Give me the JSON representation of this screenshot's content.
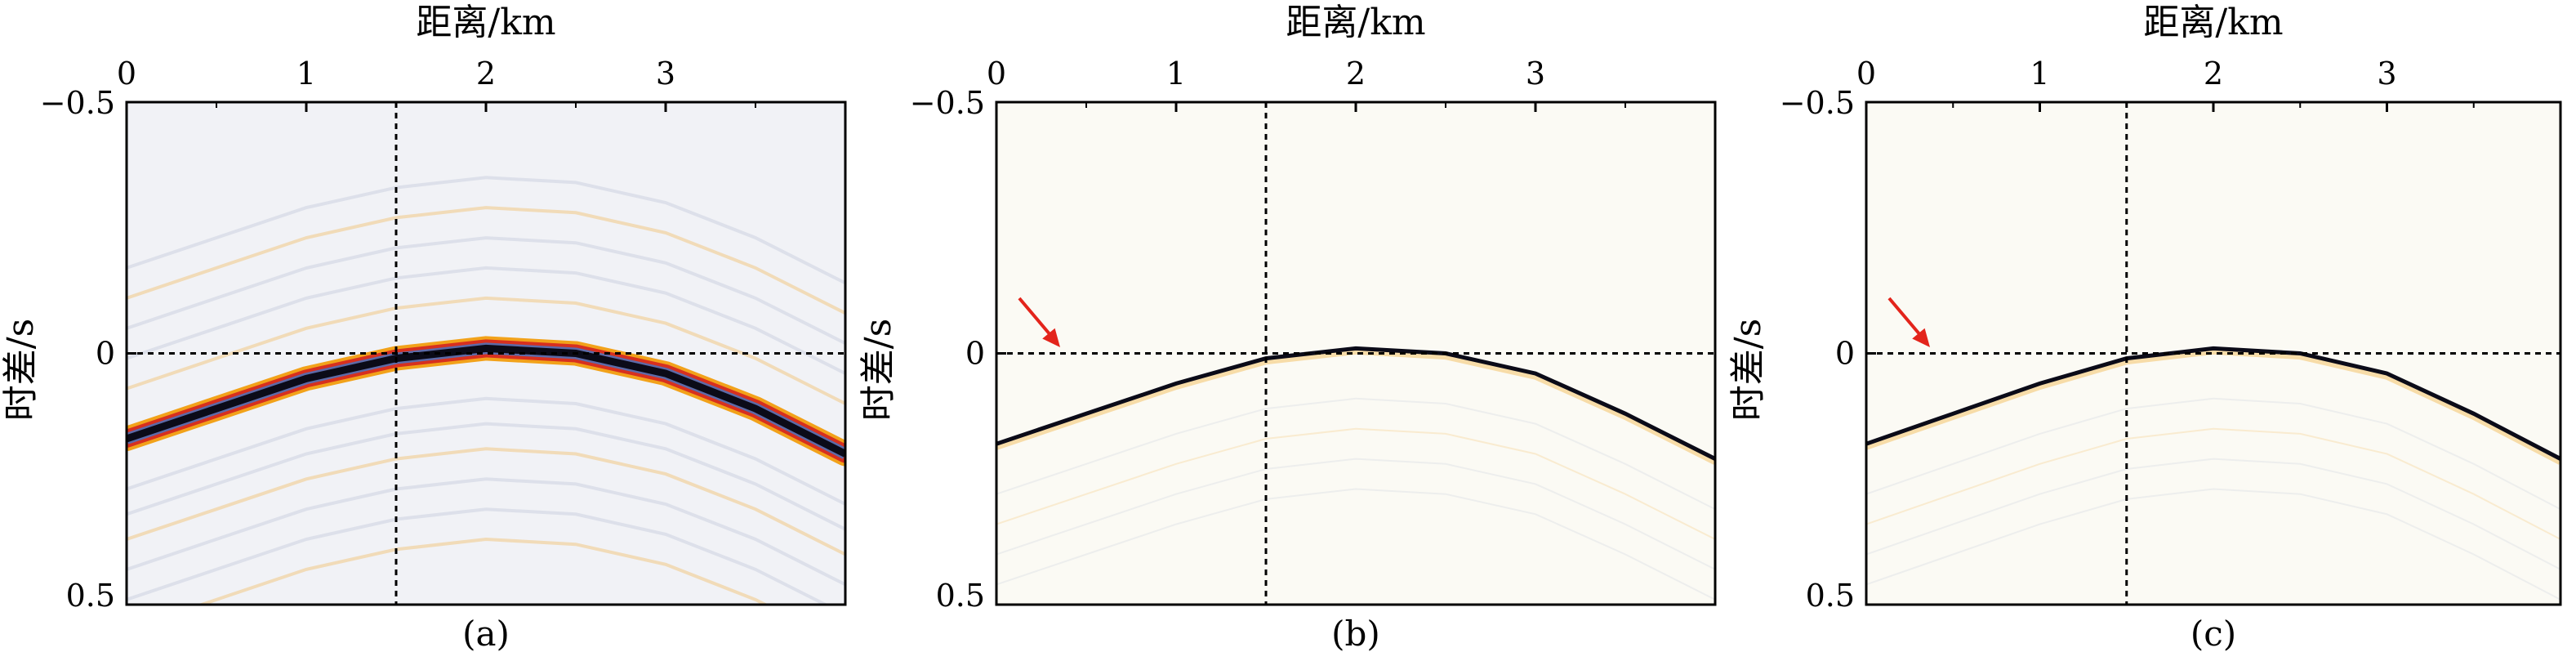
{
  "figure": {
    "panel_labels": [
      "(a)",
      "(b)",
      "(c)"
    ]
  },
  "chart_data": [
    {
      "type": "heatmap",
      "panel": "(a)",
      "xlabel": "距离/km",
      "ylabel": "时差/s",
      "x_ticks": [
        "0",
        "1",
        "2",
        "3"
      ],
      "y_ticks": [
        "−0.5",
        "0",
        "0.5"
      ],
      "xlim": [
        0,
        4
      ],
      "ylim": [
        -0.5,
        0.5
      ],
      "y_inverted": true,
      "x_axis_position": "top",
      "reference_lines": {
        "x": 1.5,
        "y": 0
      },
      "event_curve": {
        "x": [
          0,
          0.5,
          1.0,
          1.5,
          2.0,
          2.5,
          3.0,
          3.5,
          4.0
        ],
        "y": [
          0.17,
          0.11,
          0.05,
          0.01,
          -0.01,
          0.0,
          0.04,
          0.11,
          0.2
        ]
      },
      "style": "wide blue-black wavelet with orange/red side lobes and faint background arcs"
    },
    {
      "type": "heatmap",
      "panel": "(b)",
      "xlabel": "距离/km",
      "ylabel": "时差/s",
      "x_ticks": [
        "0",
        "1",
        "2",
        "3"
      ],
      "y_ticks": [
        "−0.5",
        "0",
        "0.5"
      ],
      "xlim": [
        0,
        4
      ],
      "ylim": [
        -0.5,
        0.5
      ],
      "y_inverted": true,
      "x_axis_position": "top",
      "reference_lines": {
        "x": 1.5,
        "y": 0
      },
      "event_curve": {
        "x": [
          0,
          0.5,
          1.0,
          1.5,
          2.0,
          2.5,
          3.0,
          3.5,
          4.0
        ],
        "y": [
          0.18,
          0.12,
          0.06,
          0.01,
          -0.01,
          0.0,
          0.04,
          0.12,
          0.21
        ]
      },
      "arrow_color": "#e3241b",
      "style": "thin black event, faint background"
    },
    {
      "type": "heatmap",
      "panel": "(c)",
      "xlabel": "距离/km",
      "ylabel": "时差/s",
      "x_ticks": [
        "0",
        "1",
        "2",
        "3"
      ],
      "y_ticks": [
        "−0.5",
        "0",
        "0.5"
      ],
      "xlim": [
        0,
        4
      ],
      "ylim": [
        -0.5,
        0.5
      ],
      "y_inverted": true,
      "x_axis_position": "top",
      "reference_lines": {
        "x": 1.5,
        "y": 0
      },
      "event_curve": {
        "x": [
          0,
          0.5,
          1.0,
          1.5,
          2.0,
          2.5,
          3.0,
          3.5,
          4.0
        ],
        "y": [
          0.18,
          0.12,
          0.06,
          0.01,
          -0.01,
          0.0,
          0.04,
          0.12,
          0.21
        ]
      },
      "arrow_color": "#e3241b",
      "style": "thin black event, faint background"
    }
  ],
  "colors": {
    "event_core": "#0b0b18",
    "lobe_orange": "#f2a21a",
    "lobe_red": "#d7301f",
    "bg_a": "#f1f2f6",
    "bg_bc": "#fbfaf4",
    "faint_arc": "#aab2cc",
    "arrow": "#e3241b"
  }
}
